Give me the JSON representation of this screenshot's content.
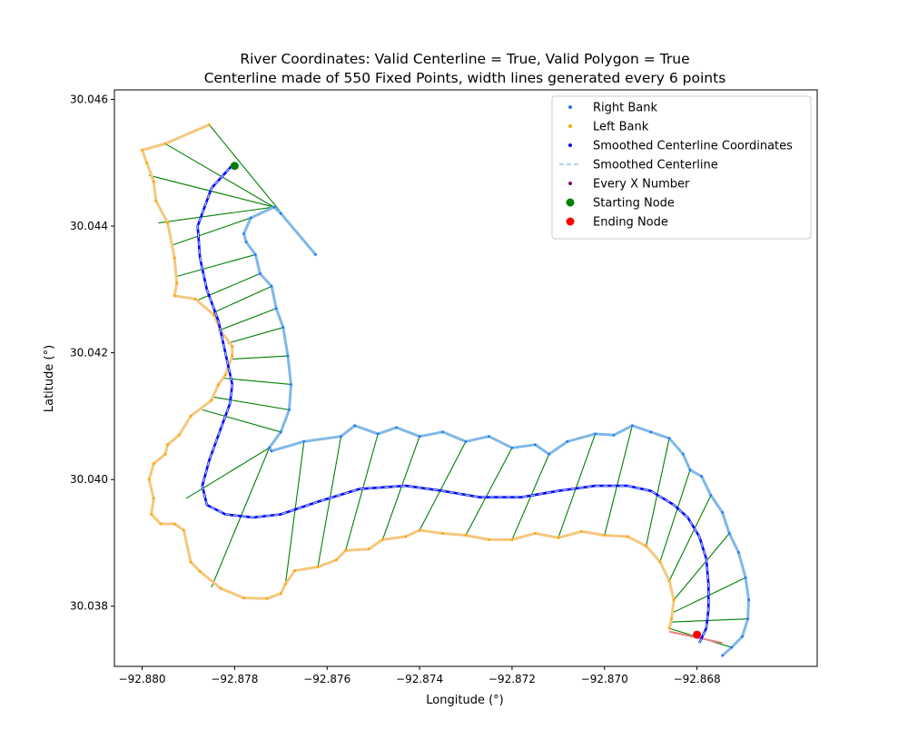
{
  "chart_data": {
    "type": "scatter",
    "title": "River Coordinates: Valid Centerline = True, Valid Polygon = True",
    "subtitle": "Centerline made of 550 Fixed Points, width lines generated every 6 points",
    "xlabel": "Longitude (°)",
    "ylabel": "Latitude (°)",
    "xlim": [
      -92.8806,
      -92.8654
    ],
    "ylim": [
      30.03705,
      30.04615
    ],
    "xticks": [
      -92.88,
      -92.878,
      -92.876,
      -92.874,
      -92.872,
      -92.87,
      -92.868
    ],
    "xtick_labels": [
      "−92.880",
      "−92.878",
      "−92.876",
      "−92.874",
      "−92.872",
      "−92.870",
      "−92.868"
    ],
    "yticks": [
      30.038,
      30.04,
      30.042,
      30.044,
      30.046
    ],
    "ytick_labels": [
      "30.038",
      "30.040",
      "30.042",
      "30.044",
      "30.046"
    ],
    "grid": false,
    "legend_position": "top-right",
    "legend": [
      {
        "label": "Right Bank",
        "marker": "dot",
        "color": "#1f77ff"
      },
      {
        "label": "Left Bank",
        "marker": "dot",
        "color": "#ffa500"
      },
      {
        "label": "Smoothed Centerline Coordinates",
        "marker": "dot",
        "color": "#0000ff"
      },
      {
        "label": "Smoothed Centerline",
        "marker": "dash",
        "color": "#add8e6"
      },
      {
        "label": "Every X Number",
        "marker": "dot",
        "color": "#800080"
      },
      {
        "label": "Starting Node",
        "marker": "big-dot",
        "color": "#008000"
      },
      {
        "label": "Ending Node",
        "marker": "big-dot",
        "color": "#ff0000"
      }
    ],
    "colors": {
      "right_bank": "#1f77ff",
      "right_bank_line": "#80b8e6",
      "left_bank": "#ffa500",
      "left_bank_line": "#f5c77e",
      "centerline": "#0000ff",
      "centerline_dash": "#add8e6",
      "width_lines": "#008000",
      "end_line": "#f08080",
      "start": "#008000",
      "end": "#ff0000"
    },
    "series": {
      "right_bank": [
        [
          -92.87625,
          30.04355
        ],
        [
          -92.877,
          30.0442
        ],
        [
          -92.87715,
          30.0443
        ],
        [
          -92.87765,
          30.04413
        ],
        [
          -92.8778,
          30.04388
        ],
        [
          -92.87775,
          30.04375
        ],
        [
          -92.87755,
          30.04355
        ],
        [
          -92.87745,
          30.04325
        ],
        [
          -92.8772,
          30.04305
        ],
        [
          -92.8771,
          30.0427
        ],
        [
          -92.87695,
          30.0424
        ],
        [
          -92.87685,
          30.04195
        ],
        [
          -92.87678,
          30.0415
        ],
        [
          -92.87682,
          30.0411
        ],
        [
          -92.877,
          30.04075
        ],
        [
          -92.87725,
          30.0405
        ],
        [
          -92.8772,
          30.04045
        ],
        [
          -92.8765,
          30.0406
        ],
        [
          -92.8757,
          30.04068
        ],
        [
          -92.8754,
          30.04085
        ],
        [
          -92.8749,
          30.04072
        ],
        [
          -92.8745,
          30.04082
        ],
        [
          -92.874,
          30.04068
        ],
        [
          -92.8735,
          30.04075
        ],
        [
          -92.873,
          30.0406
        ],
        [
          -92.8725,
          30.04068
        ],
        [
          -92.872,
          30.0405
        ],
        [
          -92.8715,
          30.04055
        ],
        [
          -92.8712,
          30.0404
        ],
        [
          -92.8708,
          30.0406
        ],
        [
          -92.8702,
          30.04072
        ],
        [
          -92.8698,
          30.0407
        ],
        [
          -92.8694,
          30.04085
        ],
        [
          -92.869,
          30.04075
        ],
        [
          -92.8686,
          30.04065
        ],
        [
          -92.8683,
          30.0404
        ],
        [
          -92.86815,
          30.04015
        ],
        [
          -92.8679,
          30.04005
        ],
        [
          -92.8677,
          30.03975
        ],
        [
          -92.86745,
          30.03948
        ],
        [
          -92.8673,
          30.03915
        ],
        [
          -92.8671,
          30.03885
        ],
        [
          -92.86695,
          30.03845
        ],
        [
          -92.86688,
          30.0381
        ],
        [
          -92.8669,
          30.0378
        ],
        [
          -92.86702,
          30.03752
        ],
        [
          -92.86725,
          30.03735
        ],
        [
          -92.86745,
          30.03722
        ]
      ],
      "left_bank": [
        [
          -92.87855,
          30.0456
        ],
        [
          -92.8795,
          30.0453
        ],
        [
          -92.88,
          30.0452
        ],
        [
          -92.8799,
          30.045
        ],
        [
          -92.87975,
          30.0447
        ],
        [
          -92.8797,
          30.0444
        ],
        [
          -92.87945,
          30.04405
        ],
        [
          -92.8793,
          30.0435
        ],
        [
          -92.87925,
          30.0431
        ],
        [
          -92.8793,
          30.0429
        ],
        [
          -92.87885,
          30.04285
        ],
        [
          -92.87845,
          30.0426
        ],
        [
          -92.8783,
          30.04235
        ],
        [
          -92.87805,
          30.0421
        ],
        [
          -92.87805,
          30.04195
        ],
        [
          -92.8782,
          30.04165
        ],
        [
          -92.87835,
          30.0415
        ],
        [
          -92.8785,
          30.04125
        ],
        [
          -92.87895,
          30.041
        ],
        [
          -92.8792,
          30.0407
        ],
        [
          -92.87945,
          30.04055
        ],
        [
          -92.8795,
          30.0404
        ],
        [
          -92.87975,
          30.04025
        ],
        [
          -92.87985,
          30.04
        ],
        [
          -92.87975,
          30.0397
        ],
        [
          -92.8798,
          30.03945
        ],
        [
          -92.8796,
          30.0393
        ],
        [
          -92.8793,
          30.0393
        ],
        [
          -92.8791,
          30.0392
        ],
        [
          -92.87895,
          30.0387
        ],
        [
          -92.87875,
          30.03855
        ],
        [
          -92.8783,
          30.03828
        ],
        [
          -92.8778,
          30.03813
        ],
        [
          -92.8773,
          30.03812
        ],
        [
          -92.877,
          30.0382
        ],
        [
          -92.8769,
          30.03835
        ],
        [
          -92.8767,
          30.03856
        ],
        [
          -92.8762,
          30.03862
        ],
        [
          -92.8758,
          30.03873
        ],
        [
          -92.8756,
          30.03888
        ],
        [
          -92.8751,
          30.0389
        ],
        [
          -92.8748,
          30.03905
        ],
        [
          -92.8743,
          30.0391
        ],
        [
          -92.874,
          30.0392
        ],
        [
          -92.8735,
          30.03915
        ],
        [
          -92.873,
          30.03912
        ],
        [
          -92.8725,
          30.03905
        ],
        [
          -92.872,
          30.03905
        ],
        [
          -92.8715,
          30.03915
        ],
        [
          -92.871,
          30.03908
        ],
        [
          -92.8705,
          30.03918
        ],
        [
          -92.87,
          30.03912
        ],
        [
          -92.8695,
          30.0391
        ],
        [
          -92.8691,
          30.03895
        ],
        [
          -92.8688,
          30.0387
        ],
        [
          -92.8686,
          30.0384
        ],
        [
          -92.8685,
          30.0381
        ],
        [
          -92.86855,
          30.0378
        ],
        [
          -92.8686,
          30.03765
        ]
      ],
      "centerline": [
        [
          -92.878,
          30.045
        ],
        [
          -92.8785,
          30.0446
        ],
        [
          -92.8788,
          30.044
        ],
        [
          -92.87875,
          30.0435
        ],
        [
          -92.8786,
          30.043
        ],
        [
          -92.87835,
          30.0425
        ],
        [
          -92.8782,
          30.042
        ],
        [
          -92.87805,
          30.0415
        ],
        [
          -92.8781,
          30.0412
        ],
        [
          -92.8783,
          30.0408
        ],
        [
          -92.87855,
          30.0403
        ],
        [
          -92.8787,
          30.0399
        ],
        [
          -92.8786,
          30.0396
        ],
        [
          -92.8782,
          30.03945
        ],
        [
          -92.8776,
          30.0394
        ],
        [
          -92.877,
          30.03945
        ],
        [
          -92.8762,
          30.03965
        ],
        [
          -92.8753,
          30.03985
        ],
        [
          -92.8743,
          30.0399
        ],
        [
          -92.8735,
          30.03982
        ],
        [
          -92.8727,
          30.03972
        ],
        [
          -92.8718,
          30.03972
        ],
        [
          -92.871,
          30.03982
        ],
        [
          -92.8702,
          30.0399
        ],
        [
          -92.8695,
          30.0399
        ],
        [
          -92.869,
          30.03982
        ],
        [
          -92.8685,
          30.0396
        ],
        [
          -92.8682,
          30.0394
        ],
        [
          -92.86795,
          30.0391
        ],
        [
          -92.8678,
          30.03875
        ],
        [
          -92.86775,
          30.03835
        ],
        [
          -92.86775,
          30.03795
        ],
        [
          -92.8678,
          30.03765
        ],
        [
          -92.86795,
          30.03742
        ]
      ],
      "width_line_pairs": [
        [
          [
            -92.87625,
            30.04355
          ],
          [
            -92.87855,
            30.0456
          ]
        ],
        [
          [
            -92.87715,
            30.0443
          ],
          [
            -92.8795,
            30.0453
          ]
        ],
        [
          [
            -92.87715,
            30.0443
          ],
          [
            -92.87985,
            30.0448
          ]
        ],
        [
          [
            -92.87715,
            30.0443
          ],
          [
            -92.87965,
            30.04405
          ]
        ],
        [
          [
            -92.87765,
            30.04413
          ],
          [
            -92.87935,
            30.0437
          ]
        ],
        [
          [
            -92.87755,
            30.04355
          ],
          [
            -92.87928,
            30.0432
          ]
        ],
        [
          [
            -92.87745,
            30.04325
          ],
          [
            -92.8788,
            30.04283
          ]
        ],
        [
          [
            -92.8772,
            30.04305
          ],
          [
            -92.8785,
            30.04262
          ]
        ],
        [
          [
            -92.8771,
            30.0427
          ],
          [
            -92.87835,
            30.04235
          ]
        ],
        [
          [
            -92.87695,
            30.0424
          ],
          [
            -92.87815,
            30.04215
          ]
        ],
        [
          [
            -92.87685,
            30.04195
          ],
          [
            -92.87808,
            30.0419
          ]
        ],
        [
          [
            -92.87678,
            30.0415
          ],
          [
            -92.87825,
            30.0416
          ]
        ],
        [
          [
            -92.87682,
            30.0411
          ],
          [
            -92.87845,
            30.0413
          ]
        ],
        [
          [
            -92.877,
            30.04075
          ],
          [
            -92.8787,
            30.0411
          ]
        ],
        [
          [
            -92.87725,
            30.0405
          ],
          [
            -92.87905,
            30.0397
          ]
        ],
        [
          [
            -92.87725,
            30.0405
          ],
          [
            -92.8785,
            30.0383
          ]
        ],
        [
          [
            -92.8765,
            30.0406
          ],
          [
            -92.8769,
            30.03835
          ]
        ],
        [
          [
            -92.8757,
            30.04068
          ],
          [
            -92.8762,
            30.03862
          ]
        ],
        [
          [
            -92.8749,
            30.04072
          ],
          [
            -92.8756,
            30.03888
          ]
        ],
        [
          [
            -92.874,
            30.04068
          ],
          [
            -92.8748,
            30.03905
          ]
        ],
        [
          [
            -92.873,
            30.0406
          ],
          [
            -92.874,
            30.0392
          ]
        ],
        [
          [
            -92.872,
            30.0405
          ],
          [
            -92.873,
            30.03912
          ]
        ],
        [
          [
            -92.8712,
            30.0404
          ],
          [
            -92.872,
            30.03905
          ]
        ],
        [
          [
            -92.8702,
            30.04072
          ],
          [
            -92.871,
            30.03908
          ]
        ],
        [
          [
            -92.8694,
            30.04085
          ],
          [
            -92.87,
            30.03912
          ]
        ],
        [
          [
            -92.8686,
            30.04065
          ],
          [
            -92.8691,
            30.03895
          ]
        ],
        [
          [
            -92.86815,
            30.04015
          ],
          [
            -92.8688,
            30.0387
          ]
        ],
        [
          [
            -92.8677,
            30.03975
          ],
          [
            -92.8686,
            30.0384
          ]
        ],
        [
          [
            -92.8673,
            30.03915
          ],
          [
            -92.8685,
            30.0381
          ]
        ],
        [
          [
            -92.86695,
            30.03845
          ],
          [
            -92.86852,
            30.0379
          ]
        ],
        [
          [
            -92.8669,
            30.0378
          ],
          [
            -92.86858,
            30.03775
          ]
        ],
        [
          [
            -92.86725,
            30.03735
          ],
          [
            -92.8686,
            30.03765
          ]
        ]
      ],
      "end_line": [
        [
          -92.8686,
          30.0376
        ],
        [
          -92.86745,
          30.03742
        ]
      ],
      "starting_node": [
        -92.878,
        30.04495
      ],
      "ending_node": [
        -92.868,
        30.03755
      ]
    }
  }
}
